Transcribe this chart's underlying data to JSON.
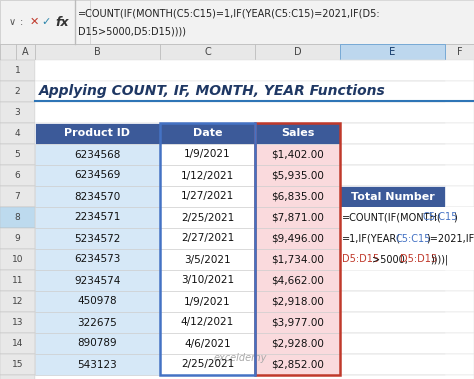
{
  "title": "Applying COUNT, IF, MONTH, YEAR Functions",
  "formula_bar_line1": "=COUNT(IF(MONTH(C5:C15)=1,IF(YEAR(C5:C15)=2021,IF(D5:",
  "formula_bar_line2": "D15>5000,D5:D15))))",
  "headers": [
    "Product ID",
    "Date",
    "Sales"
  ],
  "rows": [
    [
      "6234568",
      "1/9/2021",
      "$1,402.00"
    ],
    [
      "6234569",
      "1/12/2021",
      "$5,935.00"
    ],
    [
      "8234570",
      "1/27/2021",
      "$6,835.00"
    ],
    [
      "2234571",
      "2/25/2021",
      "$7,871.00"
    ],
    [
      "5234572",
      "2/27/2021",
      "$9,496.00"
    ],
    [
      "6234573",
      "3/5/2021",
      "$1,734.00"
    ],
    [
      "9234574",
      "3/10/2021",
      "$4,662.00"
    ],
    [
      "450978",
      "1/9/2021",
      "$2,918.00"
    ],
    [
      "322675",
      "4/12/2021",
      "$3,977.00"
    ],
    [
      "890789",
      "4/6/2021",
      "$2,928.00"
    ],
    [
      "543123",
      "2/25/2021",
      "$2,852.00"
    ]
  ],
  "formula_label": "Total Number",
  "header_bg": "#3C5A99",
  "header_fg": "#FFFFFF",
  "col_b_highlight": "#D6E8F7",
  "col_d_highlight": "#FADADD",
  "total_number_bg": "#3C5A99",
  "total_number_fg": "#FFFFFF",
  "grid_color": "#BBBBBB",
  "bg_color": "#FFFFFF",
  "formula_bar_bg": "#F2F2F2",
  "watermark": "exceldemy",
  "col_letters": [
    "A",
    "B",
    "C",
    "D",
    "E",
    "F"
  ],
  "title_color": "#1F3864",
  "underline_color": "#2E75B6",
  "blue_ref_color": "#4472C4",
  "red_ref_color": "#C0392B",
  "border_red": "#C0392B",
  "border_blue": "#4472C4"
}
